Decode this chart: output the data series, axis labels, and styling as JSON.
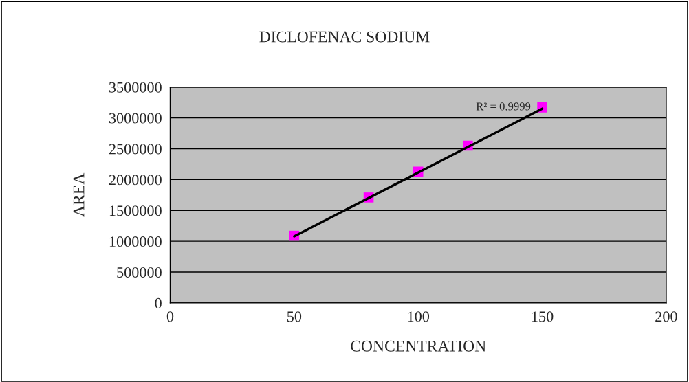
{
  "chart_data": {
    "type": "scatter",
    "title": "DICLOFENAC SODIUM",
    "xlabel": "CONCENTRATION",
    "ylabel": "AREA",
    "x": [
      50,
      80,
      100,
      120,
      150
    ],
    "series": [
      {
        "color": "#ff00ff",
        "marker": "square",
        "values": [
          1090000,
          1710000,
          2130000,
          2550000,
          3170000
        ]
      },
      {
        "type": "line",
        "color": "#000000",
        "marker": "none",
        "line_style": "solid",
        "x": [
          50,
          150
        ],
        "values": [
          1080000,
          3150000
        ]
      }
    ],
    "annotations": [
      {
        "text": "R² = 0.9999",
        "x": 150,
        "y": 3170000
      }
    ],
    "xlim": [
      0,
      200
    ],
    "xticks": [
      0,
      50,
      100,
      150,
      200
    ],
    "ylim": [
      0,
      3500000
    ],
    "yticks": [
      0,
      500000,
      1000000,
      1500000,
      2000000,
      2500000,
      3000000,
      3500000
    ],
    "grid": "y",
    "legend": false
  }
}
